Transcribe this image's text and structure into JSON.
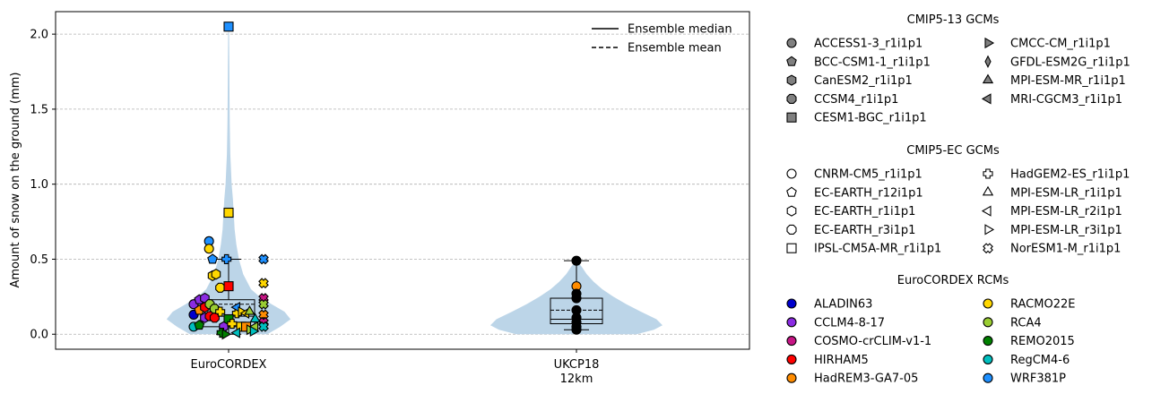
{
  "chart_data": {
    "type": "violin",
    "ylabel": "Amount of snow on the ground (mm)",
    "ylim": [
      -0.1,
      2.15
    ],
    "yticks": [
      0.0,
      0.5,
      1.0,
      1.5,
      2.0
    ],
    "ytick_labels": [
      "0.0",
      "0.5",
      "1.0",
      "1.5",
      "2.0"
    ],
    "grid": "y-dashed",
    "categories": [
      {
        "line1": "EuroCORDEX",
        "line2": ""
      },
      {
        "line1": "UKCP18",
        "line2": "12km"
      }
    ],
    "line_legend": {
      "position": "top-right",
      "items": [
        {
          "label": "Ensemble median",
          "style": "solid"
        },
        {
          "label": "Ensemble mean",
          "style": "dashed"
        }
      ]
    },
    "violins": [
      {
        "category": "EuroCORDEX",
        "box": {
          "whislo": 0.0,
          "q1": 0.05,
          "median": 0.12,
          "q3": 0.23,
          "whishi": 0.5,
          "mean": 0.2
        },
        "density": [
          [
            0.0,
            0.45
          ],
          [
            0.05,
            0.6
          ],
          [
            0.1,
            0.72
          ],
          [
            0.15,
            0.65
          ],
          [
            0.2,
            0.5
          ],
          [
            0.25,
            0.36
          ],
          [
            0.3,
            0.26
          ],
          [
            0.4,
            0.17
          ],
          [
            0.5,
            0.12
          ],
          [
            0.6,
            0.09
          ],
          [
            0.7,
            0.07
          ],
          [
            0.8,
            0.06
          ],
          [
            0.9,
            0.05
          ],
          [
            1.0,
            0.035
          ],
          [
            1.2,
            0.02
          ],
          [
            1.4,
            0.014
          ],
          [
            1.6,
            0.01
          ],
          [
            1.8,
            0.008
          ],
          [
            2.0,
            0.005
          ],
          [
            2.05,
            0.0
          ]
        ]
      },
      {
        "category": "UKCP18 12km",
        "box": {
          "whislo": 0.03,
          "q1": 0.07,
          "median": 0.1,
          "q3": 0.24,
          "whishi": 0.49,
          "mean": 0.16
        },
        "density": [
          [
            0.0,
            0.7
          ],
          [
            0.03,
            0.9
          ],
          [
            0.06,
            1.0
          ],
          [
            0.1,
            0.93
          ],
          [
            0.15,
            0.75
          ],
          [
            0.2,
            0.58
          ],
          [
            0.25,
            0.43
          ],
          [
            0.3,
            0.3
          ],
          [
            0.35,
            0.2
          ],
          [
            0.4,
            0.12
          ],
          [
            0.45,
            0.06
          ],
          [
            0.49,
            0.0
          ]
        ]
      }
    ],
    "gcm_groups": [
      {
        "title": "CMIP5-13 GCMs",
        "items": [
          {
            "label": "ACCESS1-3_r1i1p1",
            "marker": "circle"
          },
          {
            "label": "BCC-CSM1-1_r1i1p1",
            "marker": "pentagon"
          },
          {
            "label": "CanESM2_r1i1p1",
            "marker": "hexagon"
          },
          {
            "label": "CCSM4_r1i1p1",
            "marker": "octagon"
          },
          {
            "label": "CESM1-BGC_r1i1p1",
            "marker": "square"
          },
          {
            "label": "CMCC-CM_r1i1p1",
            "marker": "triangle-right"
          },
          {
            "label": "GFDL-ESM2G_r1i1p1",
            "marker": "thin-diamond"
          },
          {
            "label": "MPI-ESM-MR_r1i1p1",
            "marker": "triangle-up"
          },
          {
            "label": "MRI-CGCM3_r1i1p1",
            "marker": "triangle-left"
          }
        ]
      },
      {
        "title": "CMIP5-EC GCMs",
        "items": [
          {
            "label": "CNRM-CM5_r1i1p1",
            "marker": "circle"
          },
          {
            "label": "EC-EARTH_r12i1p1",
            "marker": "pentagon"
          },
          {
            "label": "EC-EARTH_r1i1p1",
            "marker": "hexagon"
          },
          {
            "label": "EC-EARTH_r3i1p1",
            "marker": "octagon"
          },
          {
            "label": "IPSL-CM5A-MR_r1i1p1",
            "marker": "square"
          },
          {
            "label": "HadGEM2-ES_r1i1p1",
            "marker": "plus"
          },
          {
            "label": "MPI-ESM-LR_r1i1p1",
            "marker": "triangle-up"
          },
          {
            "label": "MPI-ESM-LR_r2i1p1",
            "marker": "triangle-left"
          },
          {
            "label": "MPI-ESM-LR_r3i1p1",
            "marker": "triangle-right"
          },
          {
            "label": "NorESM1-M_r1i1p1",
            "marker": "x"
          }
        ]
      }
    ],
    "rcm_group": {
      "title": "EuroCORDEX RCMs",
      "items": [
        {
          "label": "ALADIN63",
          "color": "#0000cd"
        },
        {
          "label": "CCLM4-8-17",
          "color": "#8a2be2"
        },
        {
          "label": "COSMO-crCLIM-v1-1",
          "color": "#c71585"
        },
        {
          "label": "HIRHAM5",
          "color": "#ff0000"
        },
        {
          "label": "HadREM3-GA7-05",
          "color": "#ff8c00"
        },
        {
          "label": "RACMO22E",
          "color": "#ffd700"
        },
        {
          "label": "RCA4",
          "color": "#9acd32"
        },
        {
          "label": "REMO2015",
          "color": "#008000"
        },
        {
          "label": "RegCM4-6",
          "color": "#00bfbf"
        },
        {
          "label": "WRF381P",
          "color": "#1e90ff"
        }
      ]
    },
    "points": [
      {
        "cat": 0,
        "dx": 0.0,
        "y": 2.05,
        "marker": "square",
        "color": "#1e90ff"
      },
      {
        "cat": 0,
        "dx": 0.0,
        "y": 0.81,
        "marker": "square",
        "color": "#ffd700"
      },
      {
        "cat": 0,
        "dx": -0.28,
        "y": 0.62,
        "marker": "circle",
        "color": "#1e90ff"
      },
      {
        "cat": 0,
        "dx": -0.28,
        "y": 0.57,
        "marker": "circle",
        "color": "#ffd700"
      },
      {
        "cat": 0,
        "dx": -0.23,
        "y": 0.5,
        "marker": "pentagon",
        "color": "#1e90ff"
      },
      {
        "cat": 0,
        "dx": -0.23,
        "y": 0.39,
        "marker": "hexagon",
        "color": "#ffd700"
      },
      {
        "cat": 0,
        "dx": -0.18,
        "y": 0.4,
        "marker": "hexagon",
        "color": "#ffd700"
      },
      {
        "cat": 0,
        "dx": -0.12,
        "y": 0.31,
        "marker": "octagon",
        "color": "#ffd700"
      },
      {
        "cat": 0,
        "dx": 0.0,
        "y": 0.32,
        "marker": "square",
        "color": "#ff0000"
      },
      {
        "cat": 0,
        "dx": -0.03,
        "y": 0.5,
        "marker": "plus",
        "color": "#1e90ff"
      },
      {
        "cat": 0,
        "dx": 0.12,
        "y": 0.14,
        "marker": "plus",
        "color": "#ffd700"
      },
      {
        "cat": 0,
        "dx": 0.12,
        "y": 0.18,
        "marker": "triangle-left",
        "color": "#1e90ff"
      },
      {
        "cat": 0,
        "dx": 0.5,
        "y": 0.5,
        "marker": "x",
        "color": "#1e90ff"
      },
      {
        "cat": 0,
        "dx": 0.5,
        "y": 0.34,
        "marker": "x",
        "color": "#ffd700"
      },
      {
        "cat": 0,
        "dx": 0.5,
        "y": 0.24,
        "marker": "x",
        "color": "#c71585"
      },
      {
        "cat": 0,
        "dx": 0.5,
        "y": 0.2,
        "marker": "x",
        "color": "#9acd32"
      },
      {
        "cat": 0,
        "dx": 0.5,
        "y": 0.13,
        "marker": "x",
        "color": "#ff8c00"
      },
      {
        "cat": 0,
        "dx": 0.5,
        "y": 0.08,
        "marker": "x",
        "color": "#c71585"
      },
      {
        "cat": 0,
        "dx": 0.5,
        "y": 0.05,
        "marker": "x",
        "color": "#00bfbf"
      },
      {
        "cat": 0,
        "dx": -0.5,
        "y": 0.2,
        "marker": "circle",
        "color": "#8a2be2"
      },
      {
        "cat": 0,
        "dx": -0.5,
        "y": 0.13,
        "marker": "circle",
        "color": "#0000cd"
      },
      {
        "cat": 0,
        "dx": -0.5,
        "y": 0.05,
        "marker": "circle",
        "color": "#00bfbf"
      },
      {
        "cat": 0,
        "dx": -0.42,
        "y": 0.23,
        "marker": "pentagon",
        "color": "#8a2be2"
      },
      {
        "cat": 0,
        "dx": -0.42,
        "y": 0.16,
        "marker": "pentagon",
        "color": "#ff8c00"
      },
      {
        "cat": 0,
        "dx": -0.42,
        "y": 0.06,
        "marker": "pentagon",
        "color": "#008000"
      },
      {
        "cat": 0,
        "dx": -0.34,
        "y": 0.24,
        "marker": "hexagon",
        "color": "#8a2be2"
      },
      {
        "cat": 0,
        "dx": -0.34,
        "y": 0.18,
        "marker": "hexagon",
        "color": "#ff0000"
      },
      {
        "cat": 0,
        "dx": -0.34,
        "y": 0.11,
        "marker": "hexagon",
        "color": "#8a2be2"
      },
      {
        "cat": 0,
        "dx": -0.27,
        "y": 0.2,
        "marker": "octagon",
        "color": "#9acd32"
      },
      {
        "cat": 0,
        "dx": -0.27,
        "y": 0.12,
        "marker": "octagon",
        "color": "#ff0000"
      },
      {
        "cat": 0,
        "dx": -0.2,
        "y": 0.17,
        "marker": "octagon",
        "color": "#9acd32"
      },
      {
        "cat": 0,
        "dx": -0.2,
        "y": 0.11,
        "marker": "octagon",
        "color": "#ff0000"
      },
      {
        "cat": 0,
        "dx": -0.12,
        "y": 0.15,
        "marker": "plus",
        "color": "#ffd700"
      },
      {
        "cat": 0,
        "dx": 0.0,
        "y": 0.1,
        "marker": "square",
        "color": "#008000"
      },
      {
        "cat": 0,
        "dx": -0.07,
        "y": 0.05,
        "marker": "hexagon",
        "color": "#8a2be2"
      },
      {
        "cat": 0,
        "dx": -0.1,
        "y": 0.01,
        "marker": "plus",
        "color": "#008000"
      },
      {
        "cat": 0,
        "dx": -0.05,
        "y": 0.0,
        "marker": "triangle-right",
        "color": "#008000"
      },
      {
        "cat": 0,
        "dx": 0.18,
        "y": 0.15,
        "marker": "triangle-right",
        "color": "#ffd700"
      },
      {
        "cat": 0,
        "dx": 0.25,
        "y": 0.14,
        "marker": "triangle-left",
        "color": "#ffd700"
      },
      {
        "cat": 0,
        "dx": 0.3,
        "y": 0.15,
        "marker": "triangle-up",
        "color": "#9acd32"
      },
      {
        "cat": 0,
        "dx": 0.18,
        "y": 0.05,
        "marker": "square",
        "color": "#ffd700"
      },
      {
        "cat": 0,
        "dx": 0.25,
        "y": 0.05,
        "marker": "square",
        "color": "#ff8c00"
      },
      {
        "cat": 0,
        "dx": 0.3,
        "y": 0.03,
        "marker": "triangle-right",
        "color": "#9acd32"
      },
      {
        "cat": 0,
        "dx": 0.38,
        "y": 0.05,
        "marker": "triangle-left",
        "color": "#9acd32"
      },
      {
        "cat": 0,
        "dx": 0.38,
        "y": 0.1,
        "marker": "triangle-up",
        "color": "#00bfbf"
      },
      {
        "cat": 0,
        "dx": 0.12,
        "y": 0.01,
        "marker": "triangle-left",
        "color": "#00bfbf"
      },
      {
        "cat": 0,
        "dx": 0.05,
        "y": 0.07,
        "marker": "plus",
        "color": "#ffd700"
      },
      {
        "cat": 0,
        "dx": 0.35,
        "y": 0.02,
        "marker": "triangle-right",
        "color": "#00bfbf"
      },
      {
        "cat": 1,
        "dx": 0.0,
        "y": 0.49,
        "marker": "circle",
        "color": "#000000"
      },
      {
        "cat": 1,
        "dx": 0.0,
        "y": 0.32,
        "marker": "circle",
        "color": "#ff8c00"
      },
      {
        "cat": 1,
        "dx": 0.0,
        "y": 0.27,
        "marker": "circle",
        "color": "#000000"
      },
      {
        "cat": 1,
        "dx": 0.0,
        "y": 0.24,
        "marker": "circle",
        "color": "#000000"
      },
      {
        "cat": 1,
        "dx": 0.0,
        "y": 0.16,
        "marker": "circle",
        "color": "#000000"
      },
      {
        "cat": 1,
        "dx": 0.0,
        "y": 0.11,
        "marker": "circle",
        "color": "#000000"
      },
      {
        "cat": 1,
        "dx": 0.0,
        "y": 0.08,
        "marker": "circle",
        "color": "#000000"
      },
      {
        "cat": 1,
        "dx": 0.0,
        "y": 0.05,
        "marker": "circle",
        "color": "#000000"
      },
      {
        "cat": 1,
        "dx": 0.0,
        "y": 0.03,
        "marker": "circle",
        "color": "#000000"
      }
    ],
    "colors": {
      "violin_fill": "#bcd5e8",
      "grid": "#b0b0b0",
      "legend_gcm_fill": "#808080"
    }
  }
}
